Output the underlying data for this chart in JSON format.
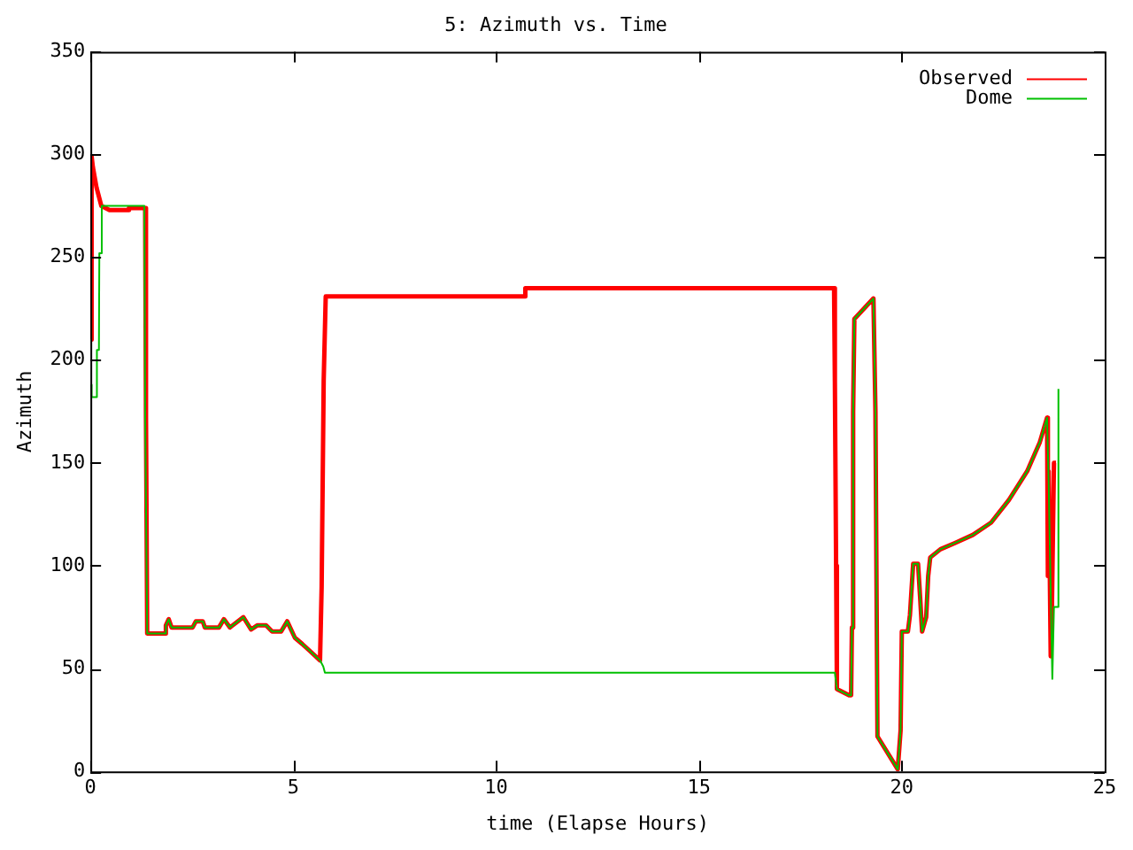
{
  "chart_data": {
    "type": "line",
    "title": "5: Azimuth vs. Time",
    "xlabel": "time (Elapse Hours)",
    "ylabel": "Azimuth",
    "legend": "top right",
    "grid": false,
    "marker": "none",
    "line_style": "solid",
    "xlim": [
      0,
      25
    ],
    "xticks": [
      0,
      5,
      10,
      15,
      20,
      25
    ],
    "ylim": [
      0,
      350
    ],
    "yticks": [
      0,
      50,
      100,
      150,
      200,
      250,
      300,
      350
    ],
    "series": [
      {
        "name": "Observed",
        "color": "#ff0000",
        "x": [
          0.02,
          0.03,
          0.06,
          0.15,
          0.27,
          0.47,
          0.92,
          0.95,
          1.35,
          1.37,
          1.4,
          1.84,
          1.86,
          1.93,
          2.0,
          2.52,
          2.6,
          2.77,
          2.82,
          3.17,
          3.29,
          3.44,
          3.77,
          3.96,
          4.11,
          4.33,
          4.48,
          4.7,
          4.85,
          5.04,
          5.22,
          5.44,
          5.66,
          5.7,
          5.75,
          5.8,
          10.7,
          10.72,
          18.33,
          18.35,
          18.38,
          18.4,
          18.7,
          18.75,
          18.77,
          18.8,
          18.83,
          19.3,
          19.35,
          19.4,
          19.9,
          19.97,
          20.0,
          20.15,
          20.2,
          20.28,
          20.4,
          20.45,
          20.5,
          20.6,
          20.65,
          20.7,
          20.95,
          21.3,
          21.75,
          22.2,
          22.64,
          23.09,
          23.4,
          23.58,
          23.6,
          23.62,
          23.67,
          23.7,
          23.75,
          23.8
        ],
        "values": [
          210,
          299,
          294,
          284,
          275,
          273,
          273,
          274,
          274,
          172,
          67,
          67,
          71,
          74,
          70,
          70,
          73,
          73,
          70,
          70,
          74,
          70,
          75,
          69,
          71,
          71,
          68,
          68,
          73,
          65,
          62,
          58,
          54,
          90,
          190,
          231,
          231,
          235,
          235,
          190,
          100,
          40,
          37,
          37,
          70,
          175,
          220,
          230,
          175,
          17,
          1,
          20,
          68,
          68,
          76,
          101,
          101,
          85,
          68,
          75,
          95,
          104,
          108,
          111,
          115,
          121,
          132,
          146,
          160,
          172,
          95,
          146,
          56,
          80,
          150,
          150
        ]
      },
      {
        "name": "Dome",
        "color": "#00c000",
        "x": [
          0.02,
          0.03,
          0.15,
          0.16,
          0.21,
          0.22,
          0.27,
          0.28,
          1.33,
          1.35,
          1.39,
          1.4,
          1.84,
          1.86,
          1.93,
          2.0,
          2.52,
          2.6,
          2.77,
          2.82,
          3.17,
          3.29,
          3.44,
          3.77,
          3.96,
          4.11,
          4.33,
          4.48,
          4.7,
          4.85,
          5.04,
          5.22,
          5.44,
          5.66,
          5.74,
          5.78,
          18.35,
          18.4,
          18.7,
          18.75,
          18.77,
          18.8,
          18.83,
          19.3,
          19.35,
          19.4,
          19.9,
          19.97,
          20.0,
          20.15,
          20.2,
          20.28,
          20.4,
          20.45,
          20.5,
          20.6,
          20.65,
          20.7,
          20.95,
          21.3,
          21.75,
          22.2,
          22.64,
          23.09,
          23.4,
          23.58,
          23.62,
          23.71,
          23.75,
          23.84,
          23.86
        ],
        "values": [
          188,
          182,
          182,
          205,
          205,
          252,
          252,
          275,
          275,
          172,
          172,
          67,
          67,
          71,
          74,
          70,
          70,
          73,
          73,
          70,
          70,
          74,
          70,
          75,
          69,
          71,
          71,
          68,
          68,
          73,
          65,
          62,
          58,
          54,
          51,
          48,
          48,
          40,
          37,
          37,
          70,
          175,
          220,
          230,
          175,
          17,
          1,
          20,
          68,
          68,
          76,
          101,
          101,
          85,
          68,
          75,
          95,
          104,
          108,
          111,
          115,
          121,
          132,
          146,
          160,
          172,
          140,
          45,
          80,
          80,
          186
        ]
      }
    ]
  }
}
